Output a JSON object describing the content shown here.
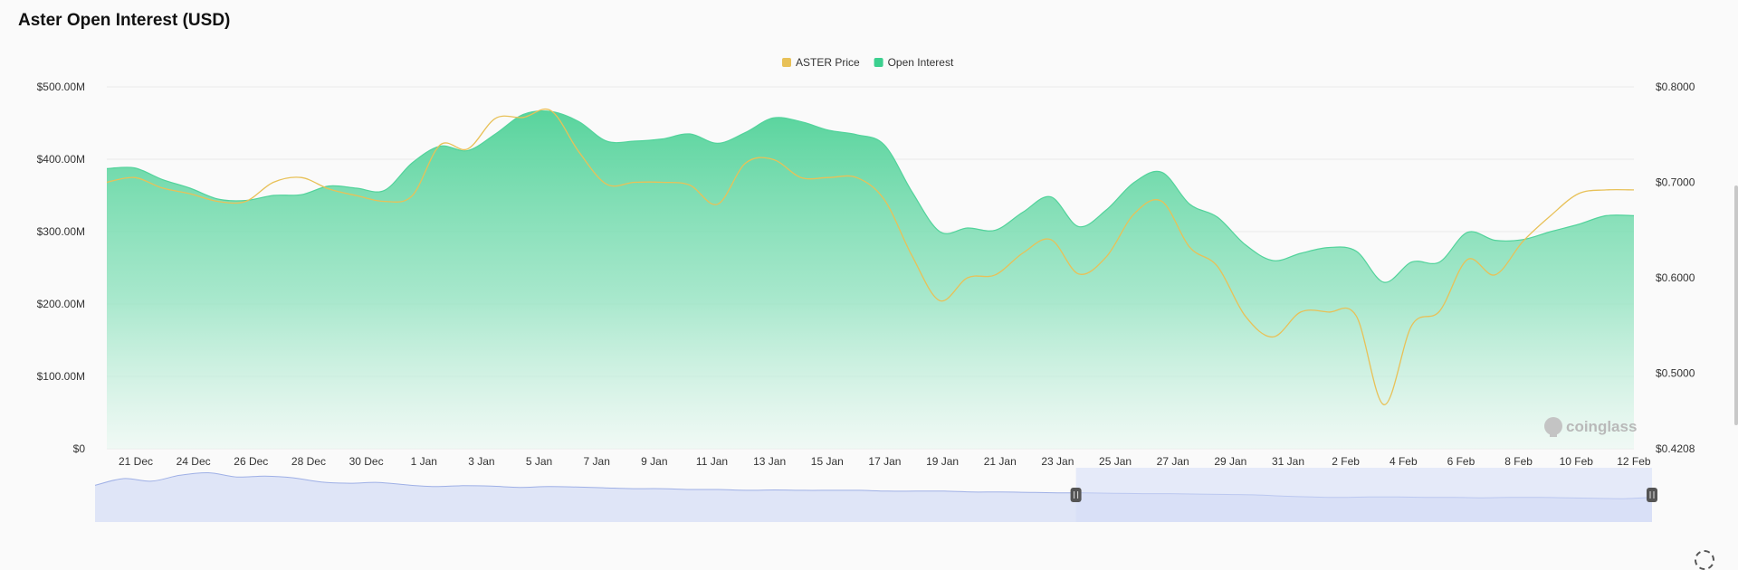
{
  "page": {
    "title": "Aster Open Interest (USD)"
  },
  "watermark": {
    "text": "coinglass",
    "icon": "coinglass-logo-icon"
  },
  "colors": {
    "price": "#e8c158",
    "open_interest": "#3cd08f",
    "oi_fill_top": "#52d39b",
    "navigator_fill": "#dfe5f7",
    "navigator_line": "#9fb0e6",
    "navigator_window": "#d3dcf7"
  },
  "chart_data": {
    "type": "area",
    "title": "Aster Open Interest (USD)",
    "x_tick_labels": [
      "21 Dec",
      "24 Dec",
      "26 Dec",
      "28 Dec",
      "30 Dec",
      "1 Jan",
      "3 Jan",
      "5 Jan",
      "7 Jan",
      "9 Jan",
      "11 Jan",
      "13 Jan",
      "15 Jan",
      "17 Jan",
      "19 Jan",
      "21 Jan",
      "23 Jan",
      "25 Jan",
      "27 Jan",
      "29 Jan",
      "31 Jan",
      "2 Feb",
      "4 Feb",
      "6 Feb",
      "8 Feb",
      "10 Feb",
      "12 Feb"
    ],
    "y_left": {
      "ticks": [
        0,
        100,
        200,
        300,
        400,
        500
      ],
      "labels": [
        "$0",
        "$100.00M",
        "$200.00M",
        "$300.00M",
        "$400.00M",
        "$500.00M"
      ],
      "range": [
        0,
        500
      ],
      "unit": "M USD"
    },
    "y_right": {
      "ticks": [
        0.4208,
        0.5,
        0.6,
        0.7,
        0.8
      ],
      "labels": [
        "$0.4208",
        "$0.5000",
        "$0.6000",
        "$0.7000",
        "$0.8000"
      ],
      "range": [
        0.4208,
        0.8
      ]
    },
    "grid": true,
    "legend": {
      "position": "top-center",
      "items": [
        {
          "label": "ASTER Price",
          "color": "#e8c158"
        },
        {
          "label": "Open Interest",
          "color": "#3cd08f"
        }
      ]
    },
    "series": [
      {
        "name": "Open Interest",
        "axis": "left",
        "kind": "area",
        "x": [
          0,
          1,
          2,
          3,
          4,
          5,
          6,
          7,
          8,
          9,
          10,
          11,
          12,
          13,
          14,
          15,
          16,
          17,
          18,
          19,
          20,
          21,
          22,
          23,
          24,
          25,
          26,
          27,
          28,
          29,
          30,
          31,
          32,
          33,
          34,
          35,
          36,
          37,
          38,
          39,
          40,
          41,
          42,
          43,
          44,
          45,
          46,
          47,
          48,
          49,
          50,
          51,
          52,
          53,
          54,
          55
        ],
        "values": [
          387,
          388,
          372,
          360,
          345,
          343,
          350,
          351,
          363,
          360,
          357,
          395,
          418,
          412,
          435,
          462,
          466,
          452,
          425,
          425,
          428,
          435,
          422,
          437,
          457,
          452,
          440,
          434,
          420,
          355,
          300,
          305,
          302,
          327,
          348,
          307,
          330,
          368,
          382,
          338,
          320,
          282,
          260,
          270,
          278,
          273,
          230,
          258,
          258,
          299,
          288,
          289,
          300,
          310,
          322,
          322
        ]
      },
      {
        "name": "ASTER Price",
        "axis": "right",
        "kind": "line",
        "x": [
          0,
          1,
          2,
          3,
          4,
          5,
          6,
          7,
          8,
          9,
          10,
          11,
          12,
          13,
          14,
          15,
          16,
          17,
          18,
          19,
          20,
          21,
          22,
          23,
          24,
          25,
          26,
          27,
          28,
          29,
          30,
          31,
          32,
          33,
          34,
          35,
          36,
          37,
          38,
          39,
          40,
          41,
          42,
          43,
          44,
          45,
          46,
          47,
          48,
          49,
          50,
          51,
          52,
          53,
          54,
          55
        ],
        "values": [
          0.7,
          0.705,
          0.694,
          0.688,
          0.68,
          0.68,
          0.7,
          0.705,
          0.693,
          0.686,
          0.68,
          0.686,
          0.739,
          0.735,
          0.767,
          0.768,
          0.775,
          0.732,
          0.698,
          0.7,
          0.7,
          0.697,
          0.677,
          0.72,
          0.724,
          0.705,
          0.705,
          0.705,
          0.682,
          0.623,
          0.576,
          0.6,
          0.603,
          0.626,
          0.64,
          0.604,
          0.622,
          0.667,
          0.68,
          0.632,
          0.612,
          0.56,
          0.538,
          0.564,
          0.564,
          0.56,
          0.467,
          0.55,
          0.565,
          0.619,
          0.603,
          0.638,
          0.665,
          0.688,
          0.692,
          0.692
        ]
      }
    ],
    "navigator": {
      "values": [
        88,
        104,
        98,
        112,
        118,
        108,
        110,
        106,
        96,
        93,
        95,
        89,
        85,
        87,
        86,
        83,
        85,
        84,
        82,
        80,
        80,
        78,
        78,
        76,
        77,
        76,
        76,
        76,
        74,
        74,
        74,
        72,
        72,
        71,
        70,
        70,
        69,
        68,
        68,
        67,
        66,
        65,
        62,
        60,
        59,
        60,
        60,
        59,
        59,
        58,
        59,
        59,
        58,
        57,
        56,
        59
      ],
      "window": [
        0.63,
        1.0
      ]
    }
  }
}
